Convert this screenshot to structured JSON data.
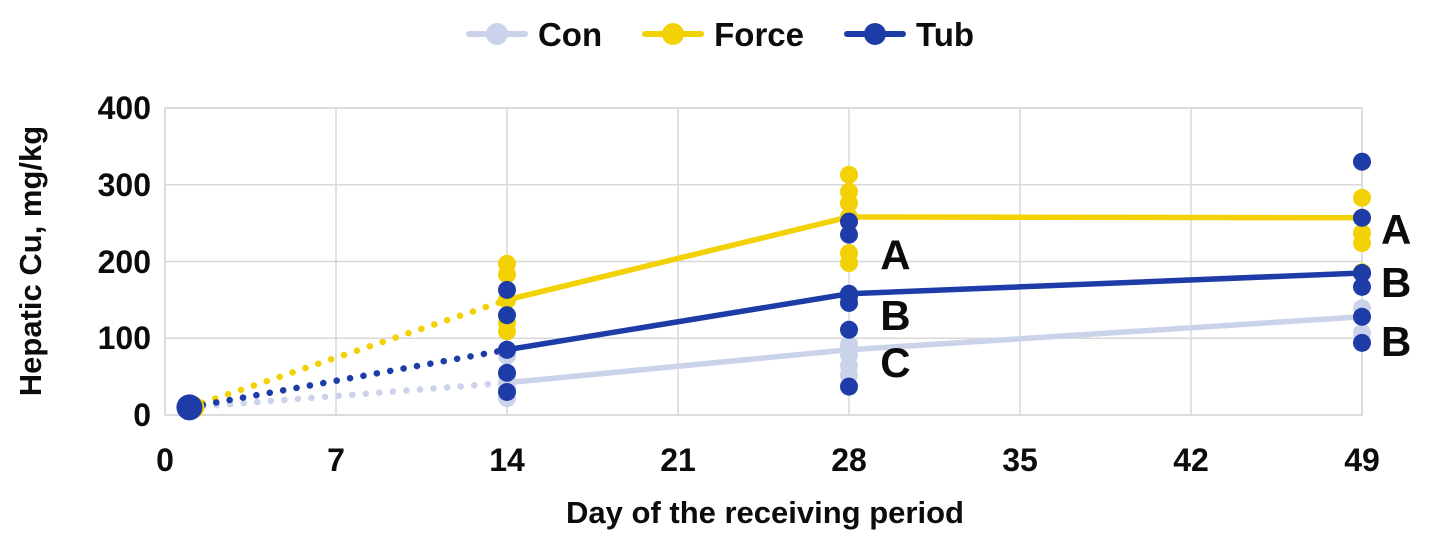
{
  "chart_data": {
    "type": "line",
    "title": "",
    "xlabel": "Day of the receiving period",
    "ylabel": "Hepatic Cu, mg/kg",
    "xticks": [
      0,
      7,
      14,
      21,
      28,
      35,
      42,
      49
    ],
    "yticks": [
      0,
      100,
      200,
      300,
      400
    ],
    "xlim": [
      0,
      49
    ],
    "ylim": [
      0,
      400
    ],
    "grid": true,
    "legend_position": "top-center",
    "grid_color": "#d8d8d8",
    "series": [
      {
        "name": "Con",
        "color": "#cbd3eb",
        "x": [
          1,
          14,
          28,
          49
        ],
        "y": [
          10,
          42,
          85,
          128
        ],
        "dotted_segment": "day1-day14",
        "points": {
          "1": [
            10
          ],
          "14": [
            77,
            52,
            35,
            22
          ],
          "28": [
            111,
            92,
            78,
            64,
            52
          ],
          "49": [
            139,
            128,
            107
          ]
        }
      },
      {
        "name": "Force",
        "color": "#f2d105",
        "x": [
          1,
          14,
          28,
          49
        ],
        "y": [
          10,
          150,
          258,
          257
        ],
        "dotted_segment": "day1-day14",
        "points": {
          "1": [
            10
          ],
          "14": [
            197,
            183,
            150,
            120,
            109
          ],
          "28": [
            313,
            291,
            276,
            258,
            211,
            198
          ],
          "49": [
            330,
            283,
            257,
            237,
            224,
            186
          ]
        }
      },
      {
        "name": "Tub",
        "color": "#1e3ca8",
        "x": [
          1,
          14,
          28,
          49
        ],
        "y": [
          10,
          85,
          158,
          185
        ],
        "dotted_segment": "day1-day14",
        "points": {
          "1": [
            10
          ],
          "14": [
            163,
            130,
            85,
            55,
            30
          ],
          "28": [
            252,
            235,
            155,
            146,
            111,
            37
          ],
          "49": [
            330,
            257,
            185,
            167,
            128,
            94
          ]
        }
      }
    ],
    "annotations": [
      {
        "label": "A",
        "x": 29.9,
        "y": 208
      },
      {
        "label": "B",
        "x": 29.9,
        "y": 129
      },
      {
        "label": "C",
        "x": 29.9,
        "y": 68
      },
      {
        "label": "A",
        "x": 50.4,
        "y": 241
      },
      {
        "label": "B",
        "x": 50.4,
        "y": 172
      },
      {
        "label": "B",
        "x": 50.4,
        "y": 95
      }
    ]
  },
  "legend": {
    "items": [
      {
        "label": "Con",
        "color": "#cbd3eb"
      },
      {
        "label": "Force",
        "color": "#f2d105"
      },
      {
        "label": "Tub",
        "color": "#1e3ca8"
      }
    ]
  }
}
